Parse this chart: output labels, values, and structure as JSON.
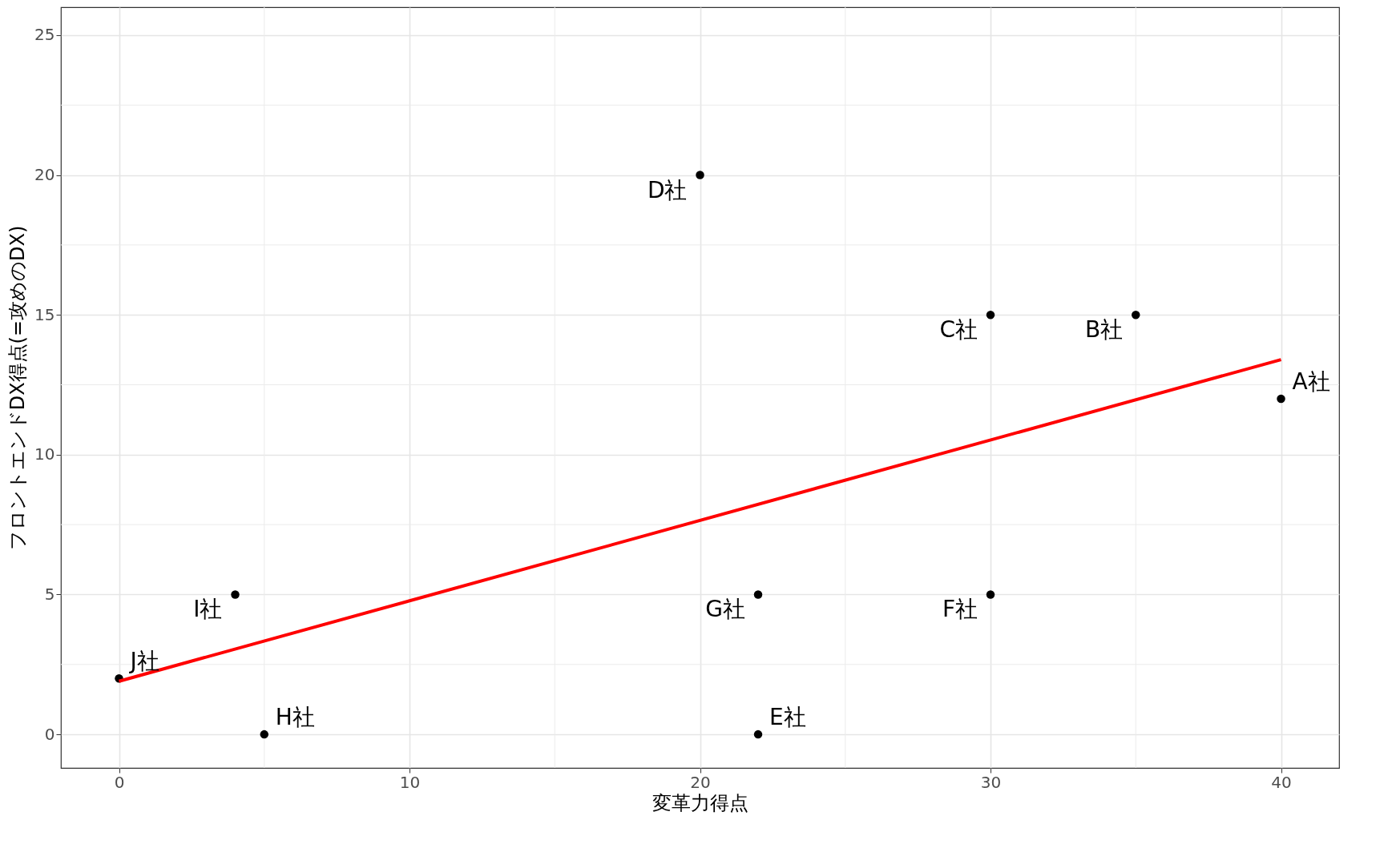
{
  "chart_data": {
    "type": "scatter",
    "xlabel": "変革力得点",
    "ylabel": "フロントエンドDX得点(=攻めのDX)",
    "xlim": [
      -2,
      42
    ],
    "ylim": [
      -1.2,
      26
    ],
    "xticks": [
      0,
      10,
      20,
      30,
      40
    ],
    "yticks": [
      0,
      5,
      10,
      15,
      20,
      25
    ],
    "grid": true,
    "marker": "circle",
    "series": [
      {
        "color": "#000000",
        "x": [
          40,
          35,
          30,
          20,
          22,
          30,
          22,
          5,
          4,
          0
        ],
        "values": [
          12,
          15,
          15,
          20,
          0,
          5,
          5,
          0,
          5,
          2
        ]
      },
      {
        "type": "line",
        "marker": "none",
        "color": "#ff0000",
        "x": [
          0,
          40
        ],
        "values": [
          1.9,
          13.4
        ]
      }
    ],
    "annotations": [
      {
        "text": "A社",
        "x": 40,
        "y": 12
      },
      {
        "text": "B社",
        "x": 35,
        "y": 15
      },
      {
        "text": "C社",
        "x": 30,
        "y": 15
      },
      {
        "text": "D社",
        "x": 20,
        "y": 20
      },
      {
        "text": "E社",
        "x": 22,
        "y": 0
      },
      {
        "text": "F社",
        "x": 30,
        "y": 5
      },
      {
        "text": "G社",
        "x": 22,
        "y": 5
      },
      {
        "text": "H社",
        "x": 5,
        "y": 0
      },
      {
        "text": "I社",
        "x": 4,
        "y": 5
      },
      {
        "text": "J社",
        "x": 0,
        "y": 2
      }
    ]
  }
}
